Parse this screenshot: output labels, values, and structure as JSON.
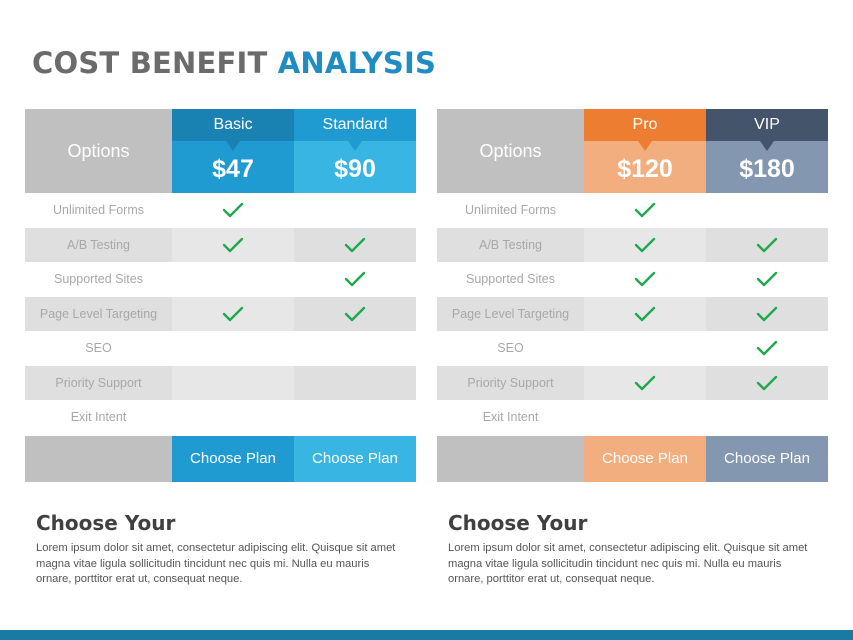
{
  "title": {
    "part1": "COST BENEFIT",
    "part2": "ANALYSIS"
  },
  "colors": {
    "basic_dark": "#1a81b3",
    "basic": "#1f9bd1",
    "standard_dark": "#1f9bd1",
    "standard": "#38b5e3",
    "pro_dark": "#ec7d31",
    "pro": "#f3ae80",
    "vip_dark": "#44546a",
    "vip": "#8497b0",
    "check": "#1fa84f"
  },
  "tables": [
    {
      "options_label": "Options",
      "plans": [
        {
          "name": "Basic",
          "price": "$47",
          "cta": "Choose Plan"
        },
        {
          "name": "Standard",
          "price": "$90",
          "cta": "Choose Plan"
        }
      ],
      "rows": [
        {
          "label": "Unlimited Forms",
          "c1": true,
          "c2": false
        },
        {
          "label": "A/B Testing",
          "c1": true,
          "c2": true
        },
        {
          "label": "Supported Sites",
          "c1": false,
          "c2": true
        },
        {
          "label": "Page Level Targeting",
          "c1": true,
          "c2": true
        },
        {
          "label": "SEO",
          "c1": false,
          "c2": false
        },
        {
          "label": "Priority Support",
          "c1": false,
          "c2": false
        },
        {
          "label": "Exit Intent",
          "c1": false,
          "c2": false
        }
      ]
    },
    {
      "options_label": "Options",
      "plans": [
        {
          "name": "Pro",
          "price": "$120",
          "cta": "Choose Plan"
        },
        {
          "name": "VIP",
          "price": "$180",
          "cta": "Choose Plan"
        }
      ],
      "rows": [
        {
          "label": "Unlimited Forms",
          "c1": true,
          "c2": false
        },
        {
          "label": "A/B Testing",
          "c1": true,
          "c2": true
        },
        {
          "label": "Supported Sites",
          "c1": true,
          "c2": true
        },
        {
          "label": "Page Level Targeting",
          "c1": true,
          "c2": true
        },
        {
          "label": "SEO",
          "c1": false,
          "c2": true
        },
        {
          "label": "Priority Support",
          "c1": true,
          "c2": true
        },
        {
          "label": "Exit Intent",
          "c1": false,
          "c2": false
        }
      ]
    }
  ],
  "descriptions": [
    {
      "heading": "Choose Your",
      "body": "Lorem ipsum dolor sit amet, consectetur adipiscing elit. Quisque sit amet magna vitae ligula sollicitudin tincidunt nec quis mi. Nulla eu mauris ornare, porttitor erat ut, consequat neque."
    },
    {
      "heading": "Choose Your",
      "body": "Lorem ipsum dolor sit amet, consectetur adipiscing elit. Quisque sit amet magna vitae ligula sollicitudin tincidunt nec quis mi. Nulla eu mauris ornare, porttitor erat ut, consequat neque."
    }
  ]
}
